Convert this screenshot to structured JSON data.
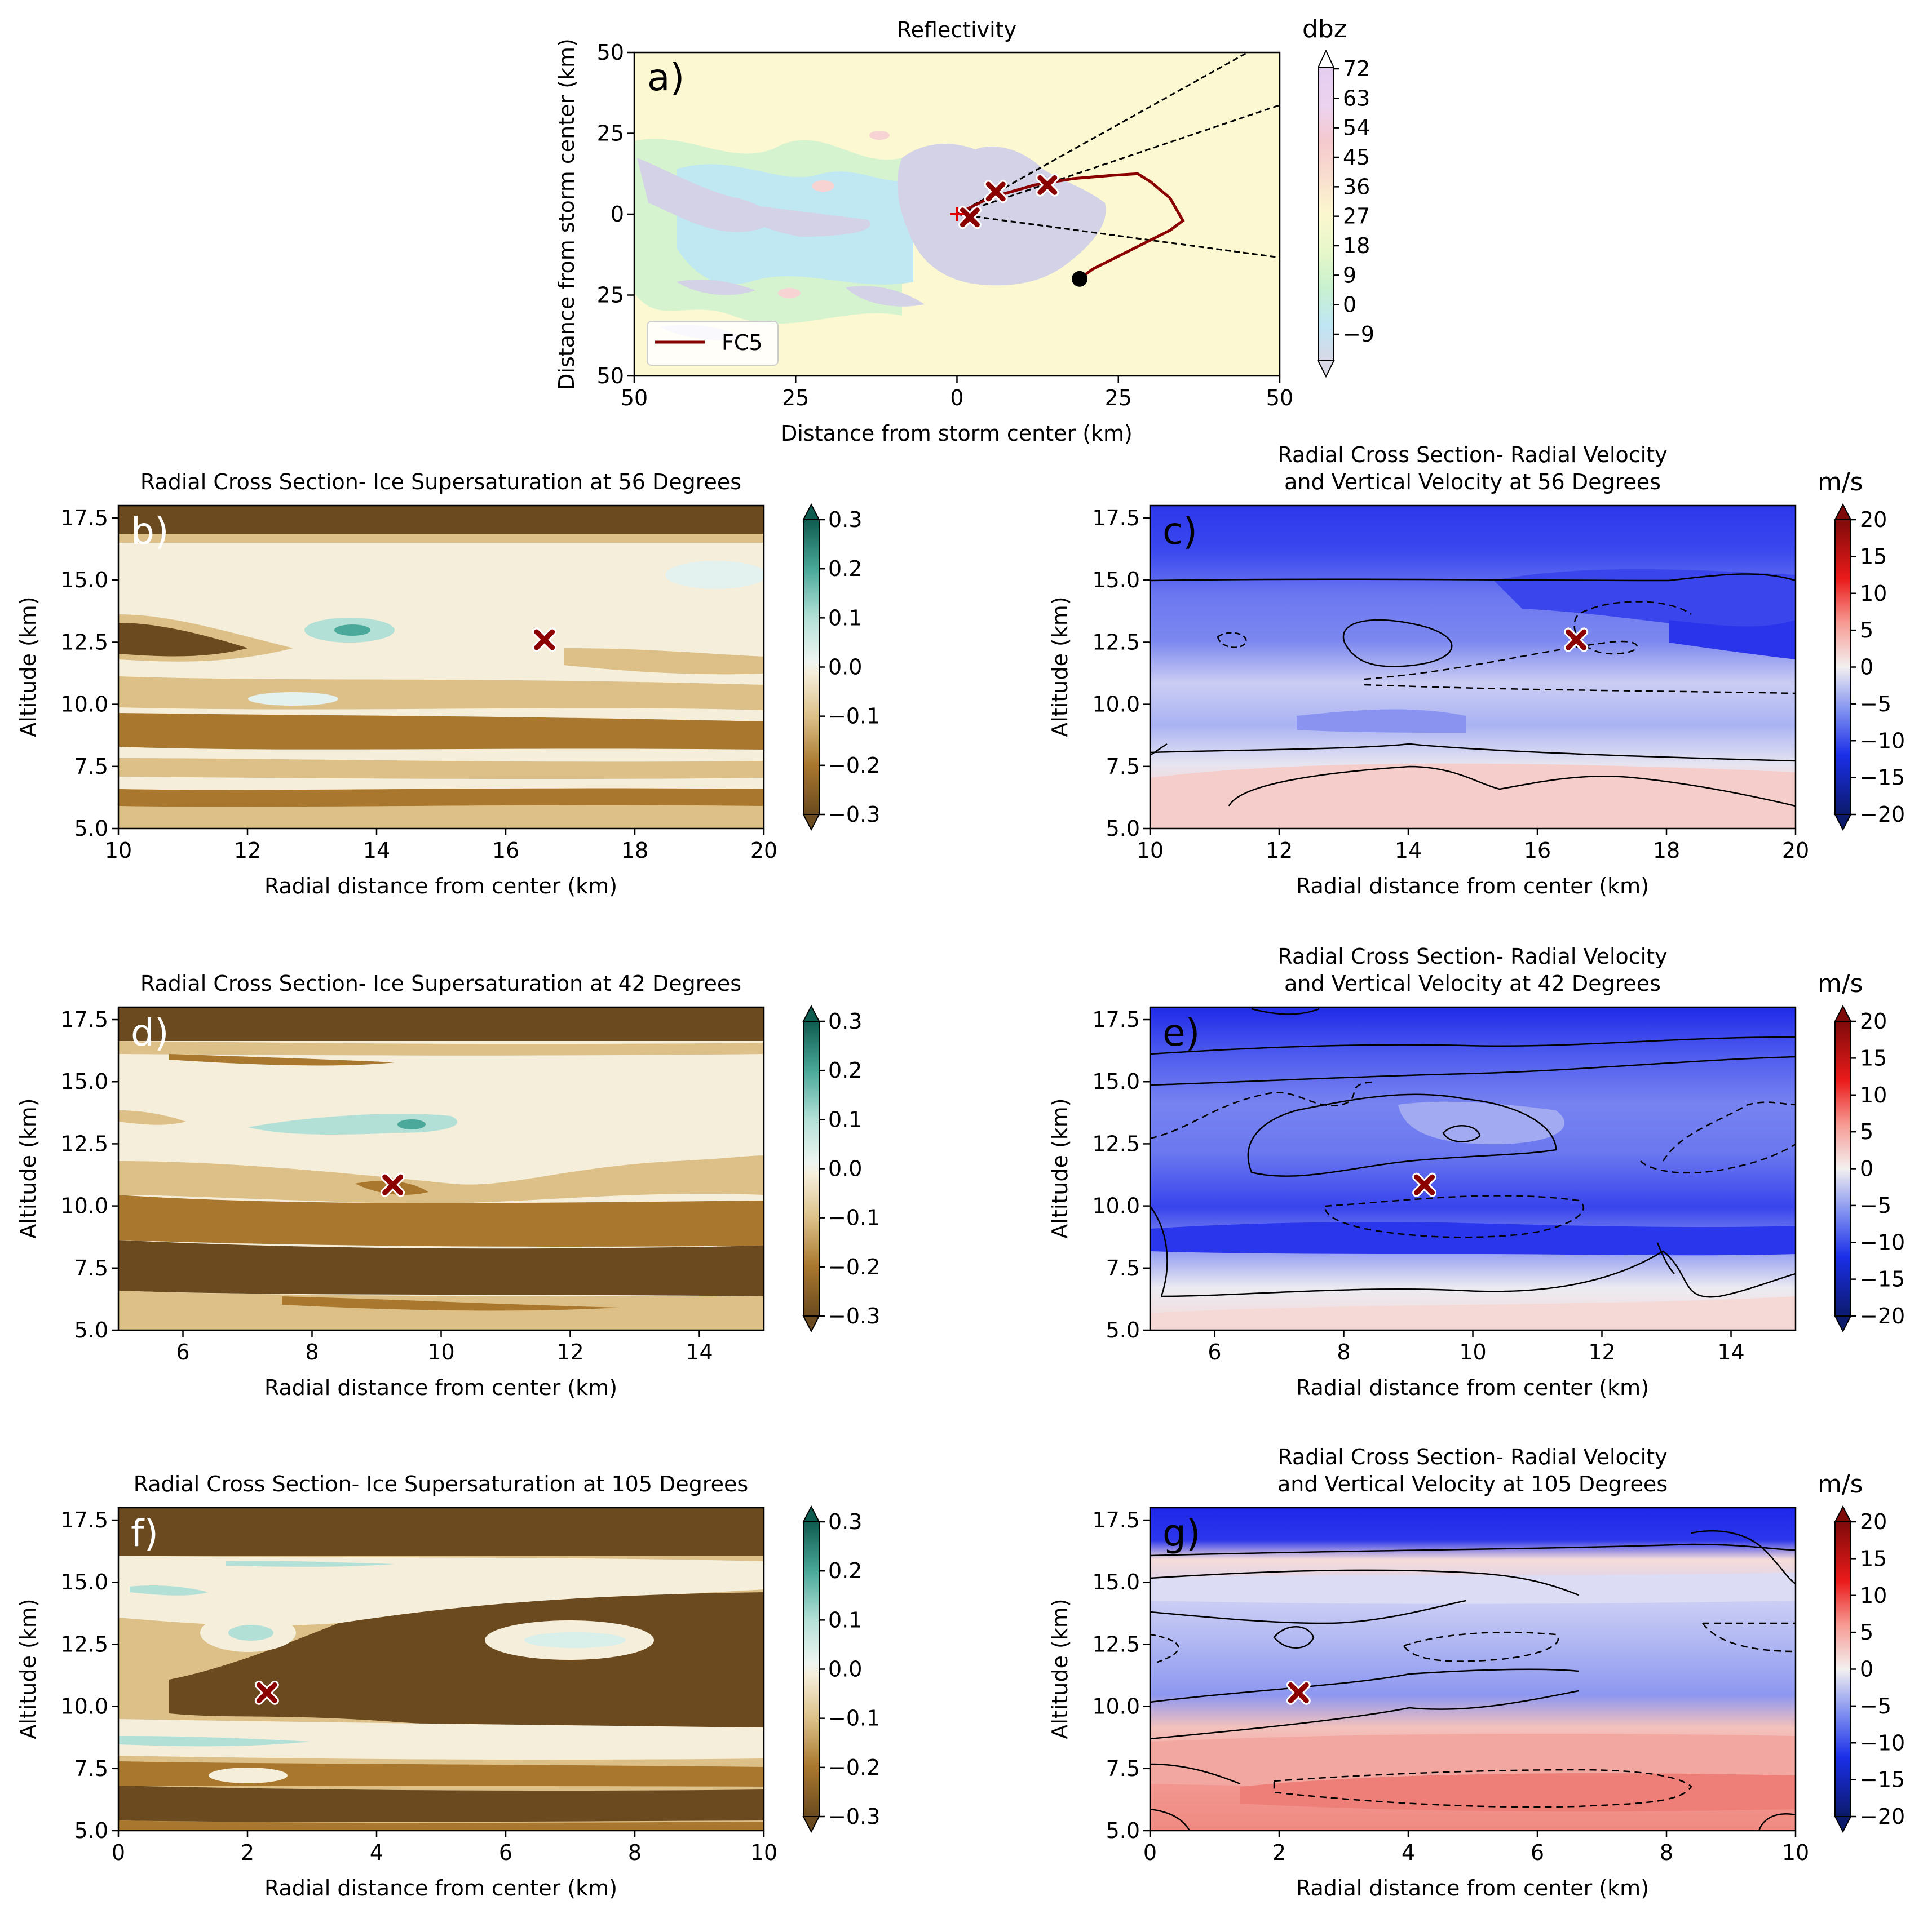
{
  "figure": {
    "panels": {
      "a": {
        "letter": "a)",
        "title": "Reflectivity",
        "xlabel": "Distance from storm center (km)",
        "ylabel": "Distance from storm center (km)",
        "xticks": [
          "50",
          "25",
          "0",
          "25",
          "50"
        ],
        "yticks": [
          "50",
          "25",
          "0",
          "25",
          "50"
        ],
        "colorbar_label": "dbz",
        "colorbar_ticks": [
          "72",
          "63",
          "54",
          "45",
          "36",
          "27",
          "18",
          "9",
          "0",
          "−9"
        ],
        "legend_label": "FC5"
      },
      "b": {
        "letter": "b)",
        "title": "Radial Cross Section- Ice Supersaturation at 56 Degrees",
        "xlabel": "Radial distance from center (km)",
        "ylabel": "Altitude (km)",
        "xticks": [
          "10",
          "12",
          "14",
          "16",
          "18",
          "20"
        ],
        "yticks": [
          "17.5",
          "15.0",
          "12.5",
          "10.0",
          "7.5",
          "5.0"
        ],
        "colorbar_ticks": [
          "0.3",
          "0.2",
          "0.1",
          "0.0",
          "−0.1",
          "−0.2",
          "−0.3"
        ]
      },
      "c": {
        "letter": "c)",
        "title_line1": "Radial Cross Section- Radial Velocity",
        "title_line2": "and Vertical Velocity at 56 Degrees",
        "xlabel": "Radial distance from center (km)",
        "ylabel": "Altitude (km)",
        "xticks": [
          "10",
          "12",
          "14",
          "16",
          "18",
          "20"
        ],
        "yticks": [
          "17.5",
          "15.0",
          "12.5",
          "10.0",
          "7.5",
          "5.0"
        ],
        "colorbar_label": "m/s",
        "colorbar_ticks": [
          "20",
          "15",
          "10",
          "5",
          "0",
          "−5",
          "−10",
          "−15",
          "−20"
        ]
      },
      "d": {
        "letter": "d)",
        "title": "Radial Cross Section- Ice Supersaturation at 42 Degrees",
        "xlabel": "Radial distance from center (km)",
        "ylabel": "Altitude (km)",
        "xticks": [
          "6",
          "8",
          "10",
          "12",
          "14"
        ],
        "yticks": [
          "17.5",
          "15.0",
          "12.5",
          "10.0",
          "7.5",
          "5.0"
        ],
        "colorbar_ticks": [
          "0.3",
          "0.2",
          "0.1",
          "0.0",
          "−0.1",
          "−0.2",
          "−0.3"
        ]
      },
      "e": {
        "letter": "e)",
        "title_line1": "Radial Cross Section- Radial Velocity",
        "title_line2": "and Vertical Velocity at 42 Degrees",
        "xlabel": "Radial distance from center (km)",
        "ylabel": "Altitude (km)",
        "xticks": [
          "6",
          "8",
          "10",
          "12",
          "14"
        ],
        "yticks": [
          "17.5",
          "15.0",
          "12.5",
          "10.0",
          "7.5",
          "5.0"
        ],
        "colorbar_label": "m/s",
        "colorbar_ticks": [
          "20",
          "15",
          "10",
          "5",
          "0",
          "−5",
          "−10",
          "−15",
          "−20"
        ]
      },
      "f": {
        "letter": "f)",
        "title": "Radial Cross Section- Ice Supersaturation at 105 Degrees",
        "xlabel": "Radial distance from center (km)",
        "ylabel": "Altitude (km)",
        "xticks": [
          "0",
          "2",
          "4",
          "6",
          "8",
          "10"
        ],
        "yticks": [
          "17.5",
          "15.0",
          "12.5",
          "10.0",
          "7.5",
          "5.0"
        ],
        "colorbar_ticks": [
          "0.3",
          "0.2",
          "0.1",
          "0.0",
          "−0.1",
          "−0.2",
          "−0.3"
        ]
      },
      "g": {
        "letter": "g)",
        "title_line1": "Radial Cross Section- Radial Velocity",
        "title_line2": "and Vertical Velocity at 105 Degrees",
        "xlabel": "Radial distance from center (km)",
        "ylabel": "Altitude (km)",
        "xticks": [
          "0",
          "2",
          "4",
          "6",
          "8",
          "10"
        ],
        "yticks": [
          "17.5",
          "15.0",
          "12.5",
          "10.0",
          "7.5",
          "5.0"
        ],
        "colorbar_label": "m/s",
        "colorbar_ticks": [
          "20",
          "15",
          "10",
          "5",
          "0",
          "−5",
          "−10",
          "−15",
          "−20"
        ]
      }
    }
  },
  "chart_data": [
    {
      "panel": "a",
      "type": "heatmap",
      "title": "Reflectivity",
      "xlabel": "Distance from storm center (km)",
      "ylabel": "Distance from storm center (km)",
      "xlim": [
        -50,
        50
      ],
      "ylim": [
        -50,
        50
      ],
      "colorbar": {
        "label": "dbz",
        "range": [
          -9,
          72
        ]
      },
      "series": [
        {
          "name": "FC5",
          "type": "line",
          "color": "#8b0000",
          "x": [
            0,
            5,
            12,
            18,
            24,
            28,
            30,
            33,
            35,
            33,
            30,
            27,
            24,
            21,
            19
          ],
          "y": [
            0,
            5,
            9,
            11,
            12,
            12.5,
            10,
            5,
            -2,
            -5,
            -8,
            -11,
            -14,
            -17,
            -20
          ]
        }
      ],
      "markers": [
        {
          "kind": "x",
          "x": 2,
          "y": -1
        },
        {
          "kind": "x",
          "x": 6,
          "y": 7
        },
        {
          "kind": "x",
          "x": 14,
          "y": 9
        },
        {
          "kind": "dot",
          "x": 19,
          "y": -20
        },
        {
          "kind": "plus",
          "x": 0,
          "y": 0
        }
      ],
      "rays_deg": [
        56,
        42,
        105
      ]
    },
    {
      "panel": "b",
      "type": "heatmap",
      "title": "Radial Cross Section- Ice Supersaturation at 56 Degrees",
      "xlim": [
        10,
        20
      ],
      "ylim": [
        5,
        18
      ],
      "colorbar_range": [
        -0.3,
        0.3
      ],
      "marker": {
        "x": 16.6,
        "y": 12.6
      }
    },
    {
      "panel": "c",
      "type": "heatmap",
      "title": "Radial Cross Section- Radial Velocity and Vertical Velocity at 56 Degrees",
      "xlim": [
        10,
        20
      ],
      "ylim": [
        5,
        18
      ],
      "colorbar_range": [
        -20,
        20
      ],
      "colorbar_label": "m/s",
      "marker": {
        "x": 16.6,
        "y": 12.6
      }
    },
    {
      "panel": "d",
      "type": "heatmap",
      "title": "Radial Cross Section- Ice Supersaturation at 42 Degrees",
      "xlim": [
        5,
        15
      ],
      "ylim": [
        5,
        18
      ],
      "colorbar_range": [
        -0.3,
        0.3
      ],
      "marker": {
        "x": 9.25,
        "y": 10.85
      }
    },
    {
      "panel": "e",
      "type": "heatmap",
      "title": "Radial Cross Section- Radial Velocity and Vertical Velocity at 42 Degrees",
      "xlim": [
        5,
        15
      ],
      "ylim": [
        5,
        18
      ],
      "colorbar_range": [
        -20,
        20
      ],
      "colorbar_label": "m/s",
      "marker": {
        "x": 9.25,
        "y": 10.85
      }
    },
    {
      "panel": "f",
      "type": "heatmap",
      "title": "Radial Cross Section- Ice Supersaturation at 105 Degrees",
      "xlim": [
        0,
        10
      ],
      "ylim": [
        5,
        18
      ],
      "colorbar_range": [
        -0.3,
        0.3
      ],
      "marker": {
        "x": 2.3,
        "y": 10.55
      }
    },
    {
      "panel": "g",
      "type": "heatmap",
      "title": "Radial Cross Section- Radial Velocity and Vertical Velocity at 105 Degrees",
      "xlim": [
        0,
        10
      ],
      "ylim": [
        5,
        18
      ],
      "colorbar_range": [
        -20,
        20
      ],
      "colorbar_label": "m/s",
      "marker": {
        "x": 2.3,
        "y": 10.55
      }
    }
  ]
}
